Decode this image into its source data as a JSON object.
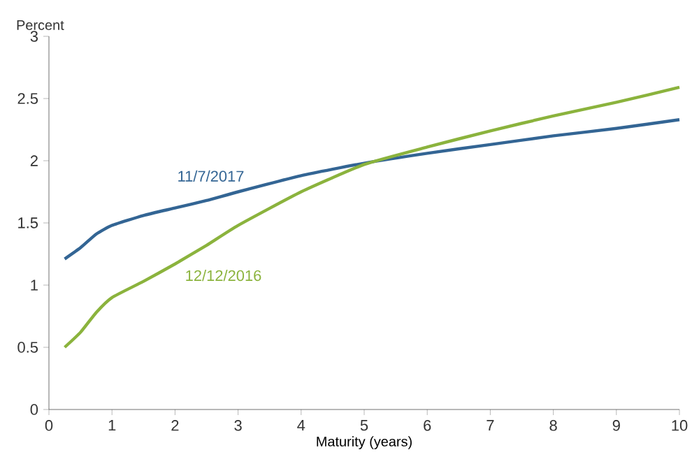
{
  "chart_data": {
    "type": "line",
    "xlabel": "Maturity (years)",
    "ylabel": "Percent",
    "xlim": [
      0,
      10
    ],
    "ylim": [
      0,
      3
    ],
    "xticks": [
      0,
      1,
      2,
      3,
      4,
      5,
      6,
      7,
      8,
      9,
      10
    ],
    "yticks": [
      0,
      0.5,
      1,
      1.5,
      2,
      2.5,
      3
    ],
    "grid": false,
    "legend": false,
    "marker": "none",
    "line_style": "solid",
    "series": [
      {
        "name": "11/7/2017",
        "color": "#336594",
        "x": [
          0.25,
          0.5,
          0.75,
          1,
          1.5,
          2,
          2.5,
          3,
          4,
          5,
          6,
          7,
          8,
          9,
          10
        ],
        "values": [
          1.21,
          1.3,
          1.41,
          1.48,
          1.56,
          1.62,
          1.68,
          1.75,
          1.88,
          1.98,
          2.06,
          2.13,
          2.2,
          2.26,
          2.33
        ]
      },
      {
        "name": "12/12/2016",
        "color": "#8bb33d",
        "x": [
          0.25,
          0.5,
          0.75,
          1,
          1.5,
          2,
          2.5,
          3,
          4,
          5,
          6,
          7,
          8,
          9,
          10
        ],
        "values": [
          0.5,
          0.62,
          0.78,
          0.9,
          1.03,
          1.17,
          1.32,
          1.48,
          1.75,
          1.97,
          2.11,
          2.24,
          2.36,
          2.47,
          2.59
        ]
      }
    ]
  }
}
